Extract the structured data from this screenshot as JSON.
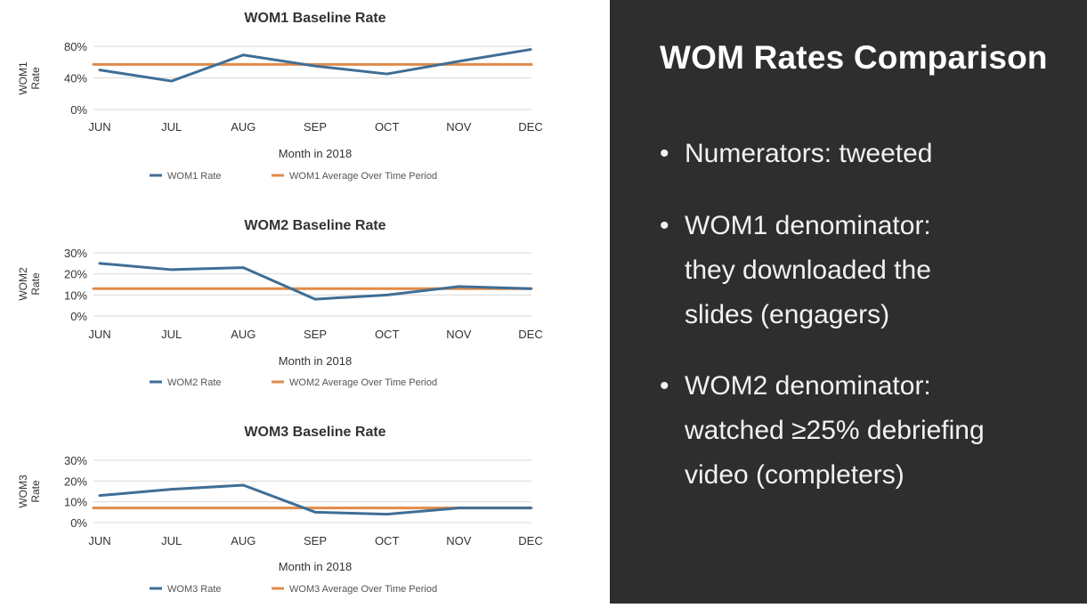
{
  "slide": {
    "title": "WOM Rates Comparison",
    "bullets": [
      {
        "lines": [
          "Numerators: tweeted"
        ]
      },
      {
        "lines": [
          "WOM1 denominator:",
          "they downloaded the",
          "slides (engagers)"
        ]
      },
      {
        "lines": [
          "WOM2 denominator:",
          "watched ≥25% debriefing",
          "video (completers)"
        ]
      }
    ],
    "bullet_symbol": "•"
  },
  "colors": {
    "rate_line": "#3f6e95",
    "average_line": "#e08b4a",
    "grid": "#d9d9d9",
    "axis_text": "#333333",
    "right_background": "#2e2e2e"
  },
  "chart_data": [
    {
      "type": "line",
      "title": "WOM1 Baseline Rate",
      "xlabel": "Month in 2018",
      "ylabel": [
        "WOM1",
        "Rate"
      ],
      "categories": [
        "JUN",
        "JUL",
        "AUG",
        "SEP",
        "OCT",
        "NOV",
        "DEC"
      ],
      "yticks": [
        "0%",
        "40%",
        "80%"
      ],
      "ylim": [
        0,
        80
      ],
      "grid": true,
      "legend_position": "bottom",
      "series": [
        {
          "name": "WOM1 Rate",
          "values": [
            50,
            36,
            69,
            55,
            45,
            61,
            76
          ]
        },
        {
          "name": "WOM1 Average Over Time Period",
          "values": [
            57,
            57,
            57,
            57,
            57,
            57,
            57
          ]
        }
      ]
    },
    {
      "type": "line",
      "title": "WOM2 Baseline Rate",
      "xlabel": "Month in 2018",
      "ylabel": [
        "WOM2",
        "Rate"
      ],
      "categories": [
        "JUN",
        "JUL",
        "AUG",
        "SEP",
        "OCT",
        "NOV",
        "DEC"
      ],
      "yticks": [
        "0%",
        "10%",
        "20%",
        "30%"
      ],
      "ylim": [
        0,
        30
      ],
      "grid": true,
      "legend_position": "bottom",
      "series": [
        {
          "name": "WOM2 Rate",
          "values": [
            25,
            22,
            23,
            8,
            10,
            14,
            13
          ]
        },
        {
          "name": "WOM2 Average Over Time Period",
          "values": [
            13,
            13,
            13,
            13,
            13,
            13,
            13
          ]
        }
      ]
    },
    {
      "type": "line",
      "title": "WOM3 Baseline Rate",
      "xlabel": "Month in 2018",
      "ylabel": [
        "WOM3",
        "Rate"
      ],
      "categories": [
        "JUN",
        "JUL",
        "AUG",
        "SEP",
        "OCT",
        "NOV",
        "DEC"
      ],
      "yticks": [
        "0%",
        "10%",
        "20%",
        "30%"
      ],
      "ylim": [
        0,
        30
      ],
      "grid": true,
      "legend_position": "bottom",
      "series": [
        {
          "name": "WOM3 Rate",
          "values": [
            13,
            16,
            18,
            5,
            4,
            7,
            7
          ]
        },
        {
          "name": "WOM3 Average Over Time Period",
          "values": [
            7,
            7,
            7,
            7,
            7,
            7,
            7
          ]
        }
      ]
    }
  ]
}
